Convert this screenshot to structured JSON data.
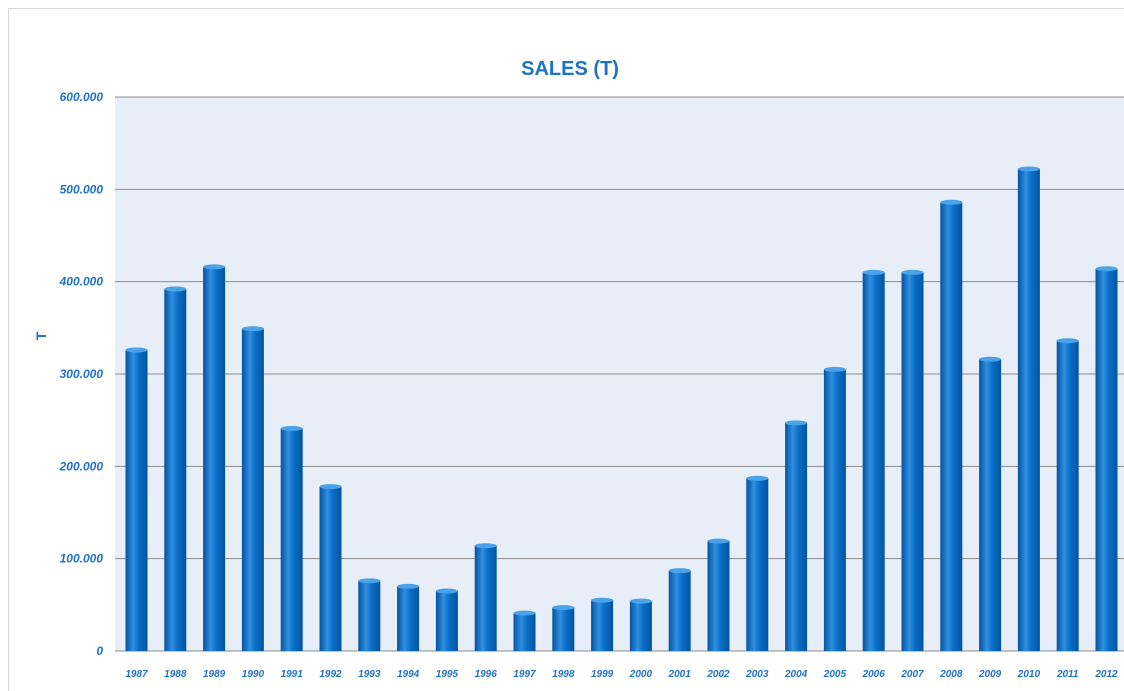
{
  "chart_data": {
    "type": "bar",
    "title": "SALES (T)",
    "xlabel": "",
    "ylabel": "T",
    "ylim": [
      0,
      600000
    ],
    "yticks": [
      "0",
      "100.000",
      "200.000",
      "300.000",
      "400.000",
      "500.000",
      "600.000"
    ],
    "grid": true,
    "categories": [
      "1987",
      "1988",
      "1989",
      "1990",
      "1991",
      "1992",
      "1993",
      "1994",
      "1995",
      "1996",
      "1997",
      "1998",
      "1999",
      "2000",
      "2001",
      "2002",
      "2003",
      "2004",
      "2005",
      "2006",
      "2007",
      "2008",
      "2009",
      "2010",
      "2011",
      "2012"
    ],
    "values": [
      326000,
      392000,
      416000,
      349000,
      241000,
      178000,
      76000,
      70000,
      65000,
      114000,
      41000,
      47000,
      55000,
      54000,
      87000,
      119000,
      187000,
      247000,
      305000,
      410000,
      410000,
      486000,
      316000,
      522000,
      336000,
      414000
    ],
    "colors": {
      "bar": "#0a6fc7",
      "bar_dark": "#0553a0",
      "bar_light": "#4aa2ea",
      "plot_bg": "#e8eef8",
      "grid": "#8c8c8c",
      "text": "#1f73c4"
    }
  }
}
